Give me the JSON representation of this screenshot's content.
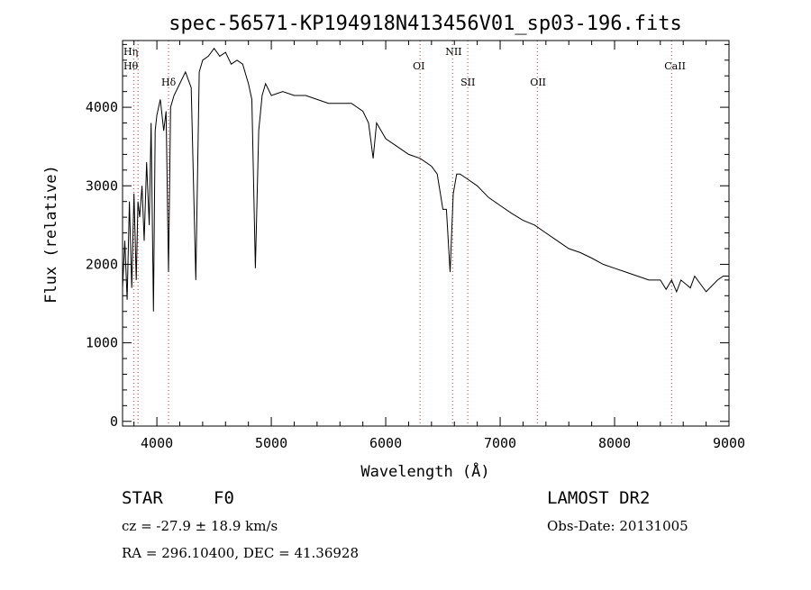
{
  "chart_data": {
    "type": "line",
    "title": "spec-56571-KP194918N413456V01_sp03-196.fits",
    "xlabel": "Wavelength (Å)",
    "ylabel": "Flux (relative)",
    "xlim": [
      3700,
      9000
    ],
    "ylim": [
      -60,
      4850
    ],
    "xticks": [
      4000,
      5000,
      6000,
      7000,
      8000,
      9000
    ],
    "yticks": [
      0,
      1000,
      2000,
      3000,
      4000
    ],
    "grid": false,
    "line_color": "#000000",
    "marker_color": "#c0392b",
    "spectral_lines": [
      {
        "name": "Hη",
        "wavelength": 3835
      },
      {
        "name": "Hθ",
        "wavelength": 3797
      },
      {
        "name": "Hδ",
        "wavelength": 4102
      },
      {
        "name": "OI",
        "wavelength": 6300
      },
      {
        "name": "NII",
        "wavelength": 6584
      },
      {
        "name": "SII",
        "wavelength": 6717
      },
      {
        "name": "OII",
        "wavelength": 7325
      },
      {
        "name": "CaII",
        "wavelength": 8498
      }
    ],
    "series": [
      {
        "x": [
          3700,
          3720,
          3740,
          3760,
          3780,
          3800,
          3820,
          3835,
          3850,
          3870,
          3889,
          3910,
          3933,
          3950,
          3970,
          3985,
          4000,
          4030,
          4060,
          4080,
          4102,
          4120,
          4150,
          4200,
          4250,
          4300,
          4340,
          4370,
          4400,
          4450,
          4500,
          4550,
          4600,
          4650,
          4700,
          4750,
          4800,
          4830,
          4861,
          4890,
          4920,
          4950,
          5000,
          5100,
          5200,
          5300,
          5400,
          5500,
          5600,
          5700,
          5800,
          5850,
          5890,
          5920,
          6000,
          6100,
          6200,
          6300,
          6400,
          6450,
          6500,
          6530,
          6563,
          6590,
          6620,
          6650,
          6700,
          6800,
          6900,
          7000,
          7100,
          7200,
          7300,
          7400,
          7500,
          7600,
          7700,
          7800,
          7900,
          8000,
          8100,
          8200,
          8300,
          8400,
          8450,
          8498,
          8542,
          8580,
          8662,
          8700,
          8800,
          8900,
          8950,
          9000
        ],
        "values": [
          1700,
          2300,
          1550,
          2800,
          1700,
          2900,
          1800,
          2800,
          2600,
          3000,
          2300,
          3300,
          2500,
          3800,
          1400,
          3700,
          3900,
          4100,
          3700,
          3950,
          1900,
          4000,
          4150,
          4300,
          4450,
          4250,
          1800,
          4450,
          4600,
          4650,
          4750,
          4650,
          4700,
          4550,
          4600,
          4550,
          4300,
          4100,
          1950,
          3700,
          4150,
          4300,
          4150,
          4200,
          4150,
          4150,
          4100,
          4050,
          4050,
          4050,
          3950,
          3800,
          3350,
          3800,
          3600,
          3500,
          3400,
          3350,
          3250,
          3150,
          2700,
          2700,
          1900,
          2900,
          3150,
          3150,
          3100,
          3000,
          2850,
          2750,
          2650,
          2560,
          2500,
          2400,
          2300,
          2200,
          2150,
          2080,
          2000,
          1950,
          1900,
          1850,
          1800,
          1800,
          1680,
          1800,
          1650,
          1800,
          1700,
          1850,
          1650,
          1800,
          1850,
          1850
        ]
      }
    ]
  },
  "info": {
    "object_class": "STAR",
    "subclass": "F0",
    "survey": "LAMOST DR2",
    "velocity": "cz = -27.9 ± 18.9 km/s",
    "obs_date": "Obs-Date: 20131005",
    "coords": "RA = 296.10400, DEC =  41.36928"
  }
}
